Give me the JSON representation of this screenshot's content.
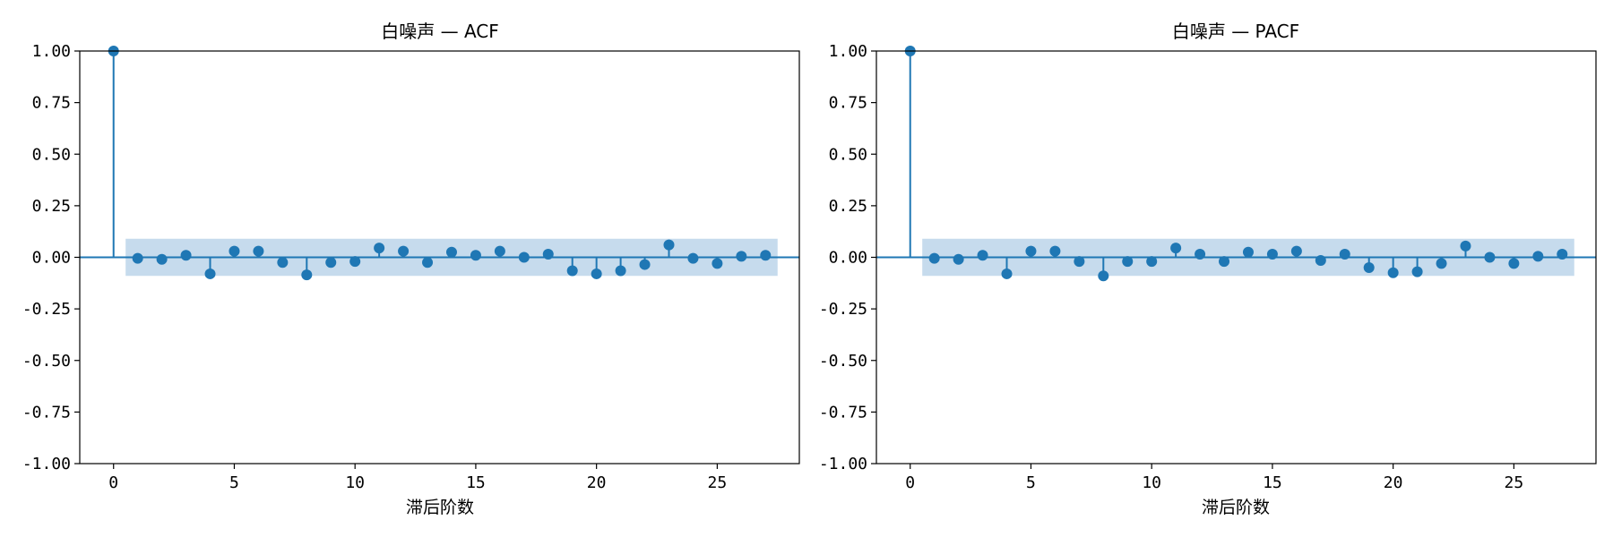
{
  "chart_data": [
    {
      "type": "stem",
      "title": "白噪声 — ACF",
      "xlabel": "滞后阶数",
      "ylabel": "",
      "xlim": [
        -1.4,
        28.4
      ],
      "ylim": [
        -1.0,
        1.0
      ],
      "x_ticks": [
        0,
        5,
        10,
        15,
        20,
        25
      ],
      "y_ticks": [
        -1.0,
        -0.75,
        -0.5,
        -0.25,
        0.0,
        0.25,
        0.5,
        0.75,
        1.0
      ],
      "y_tick_labels": [
        "-1.00",
        "-0.75",
        "-0.50",
        "-0.25",
        "0.00",
        "0.25",
        "0.50",
        "0.75",
        "1.00"
      ],
      "x_tick_labels": [
        "0",
        "5",
        "10",
        "15",
        "20",
        "25"
      ],
      "confidence_band": {
        "x_range": [
          0.5,
          27.5
        ],
        "lower": -0.09,
        "upper": 0.09
      },
      "lags": [
        0,
        1,
        2,
        3,
        4,
        5,
        6,
        7,
        8,
        9,
        10,
        11,
        12,
        13,
        14,
        15,
        16,
        17,
        18,
        19,
        20,
        21,
        22,
        23,
        24,
        25,
        26,
        27
      ],
      "values": [
        1.0,
        -0.005,
        -0.01,
        0.01,
        -0.08,
        0.03,
        0.03,
        -0.025,
        -0.085,
        -0.025,
        -0.02,
        0.045,
        0.03,
        -0.025,
        0.025,
        0.01,
        0.03,
        0.0,
        0.015,
        -0.065,
        -0.08,
        -0.065,
        -0.035,
        0.06,
        -0.005,
        -0.03,
        0.005,
        0.01
      ],
      "color": "#1f77b4",
      "band_color": "#c6dbed"
    },
    {
      "type": "stem",
      "title": "白噪声 — PACF",
      "xlabel": "滞后阶数",
      "ylabel": "",
      "xlim": [
        -1.4,
        28.4
      ],
      "ylim": [
        -1.0,
        1.0
      ],
      "x_ticks": [
        0,
        5,
        10,
        15,
        20,
        25
      ],
      "y_ticks": [
        -1.0,
        -0.75,
        -0.5,
        -0.25,
        0.0,
        0.25,
        0.5,
        0.75,
        1.0
      ],
      "y_tick_labels": [
        "-1.00",
        "-0.75",
        "-0.50",
        "-0.25",
        "0.00",
        "0.25",
        "0.50",
        "0.75",
        "1.00"
      ],
      "x_tick_labels": [
        "0",
        "5",
        "10",
        "15",
        "20",
        "25"
      ],
      "confidence_band": {
        "x_range": [
          0.5,
          27.5
        ],
        "lower": -0.09,
        "upper": 0.09
      },
      "lags": [
        0,
        1,
        2,
        3,
        4,
        5,
        6,
        7,
        8,
        9,
        10,
        11,
        12,
        13,
        14,
        15,
        16,
        17,
        18,
        19,
        20,
        21,
        22,
        23,
        24,
        25,
        26,
        27
      ],
      "values": [
        1.0,
        -0.005,
        -0.01,
        0.01,
        -0.08,
        0.03,
        0.03,
        -0.02,
        -0.09,
        -0.02,
        -0.02,
        0.045,
        0.015,
        -0.02,
        0.025,
        0.015,
        0.03,
        -0.015,
        0.015,
        -0.05,
        -0.075,
        -0.07,
        -0.03,
        0.055,
        0.0,
        -0.03,
        0.005,
        0.015
      ],
      "color": "#1f77b4",
      "band_color": "#c6dbed"
    }
  ]
}
